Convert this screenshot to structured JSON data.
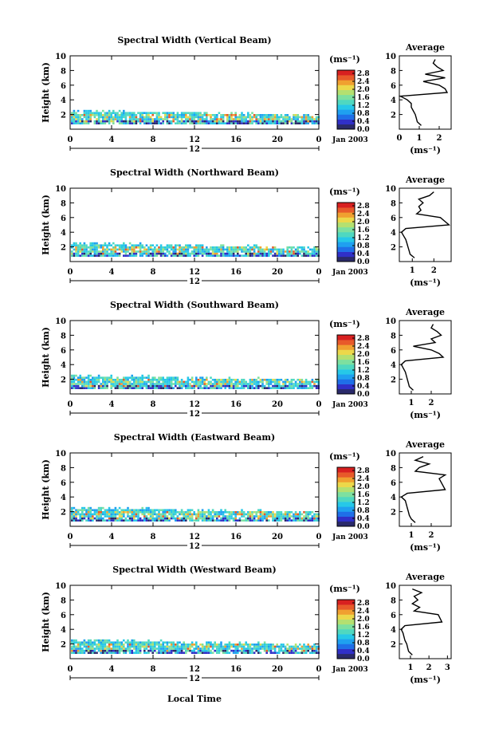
{
  "colorbar": {
    "unit": "(ms⁻¹)",
    "ticks": [
      "2.8",
      "2.4",
      "2.0",
      "1.6",
      "1.2",
      "0.8",
      "0.4",
      "0.0"
    ],
    "colors": [
      "#2a2a6a",
      "#3030c8",
      "#1f6fe8",
      "#1fa0f0",
      "#26c8e8",
      "#4fd8c0",
      "#7de0a0",
      "#b4e070",
      "#ecd84a",
      "#f0a030",
      "#e85a2a",
      "#d82020"
    ]
  },
  "xaxis": {
    "ticks": [
      "0",
      "4",
      "8",
      "12",
      "16",
      "20",
      "0"
    ],
    "day_label": "12",
    "month_label": "Jan 2003",
    "local_time_label": "Local Time"
  },
  "yaxis_label": "Height (km)",
  "average_label": "Average",
  "panels": [
    {
      "title": "Spectral Width (Vertical Beam)",
      "y_ticks": [
        "10",
        "8",
        "6",
        "4",
        "2"
      ],
      "avg_x_ticks": [
        "0",
        "1",
        "2"
      ],
      "avg_xlabel": "(ms⁻¹)"
    },
    {
      "title": "Spectral Width (Northward Beam)",
      "y_ticks": [
        "10",
        "8",
        "6",
        "4",
        "2"
      ],
      "avg_x_ticks": [
        "1",
        "2"
      ],
      "avg_xlabel": "(ms⁻¹)"
    },
    {
      "title": "Spectral Width (Southward Beam)",
      "y_ticks": [
        "10",
        "8",
        "6",
        "4",
        "2"
      ],
      "avg_x_ticks": [
        "1",
        "2"
      ],
      "avg_xlabel": "(ms⁻¹)"
    },
    {
      "title": "Spectral Width (Eastward Beam)",
      "y_ticks": [
        "10",
        "8",
        "6",
        "4",
        "2"
      ],
      "avg_x_ticks": [
        "1",
        "2"
      ],
      "avg_xlabel": "(ms⁻¹)"
    },
    {
      "title": "Spectral Width (Westward Beam)",
      "y_ticks": [
        "10",
        "8",
        "6",
        "4",
        "2"
      ],
      "avg_x_ticks": [
        "1",
        "2",
        "3"
      ],
      "avg_xlabel": "(ms⁻¹)"
    }
  ],
  "chart_data": [
    {
      "type": "heatmap",
      "title": "Spectral Width (Vertical Beam)",
      "xlabel": "",
      "ylabel": "Height (km)",
      "xlim": [
        0,
        24
      ],
      "ylim": [
        0,
        10
      ],
      "zlim": [
        0.0,
        2.8
      ],
      "avg_profile": {
        "xlim": [
          0,
          2.6
        ],
        "height": [
          0.5,
          1.0,
          1.5,
          2.0,
          2.5,
          3.0,
          3.5,
          4.0,
          4.5,
          5.0,
          5.5,
          6.0,
          6.5,
          7.0,
          7.5,
          8.0,
          8.5,
          9.0,
          9.5
        ],
        "width": [
          1.1,
          0.9,
          0.85,
          0.8,
          0.7,
          0.6,
          0.6,
          0.4,
          0.05,
          2.4,
          2.3,
          2.0,
          1.2,
          2.3,
          1.3,
          2.2,
          1.9,
          1.7,
          1.8
        ]
      }
    },
    {
      "type": "heatmap",
      "title": "Spectral Width (Northward Beam)",
      "xlabel": "",
      "ylabel": "Height (km)",
      "xlim": [
        0,
        24
      ],
      "ylim": [
        0,
        10
      ],
      "zlim": [
        0.0,
        2.8
      ],
      "avg_profile": {
        "xlim": [
          0.4,
          2.8
        ],
        "height": [
          0.5,
          1.0,
          1.5,
          2.0,
          2.5,
          3.0,
          3.5,
          4.0,
          4.5,
          5.0,
          5.5,
          6.0,
          6.5,
          7.0,
          7.5,
          8.0,
          8.5,
          9.0,
          9.5
        ],
        "width": [
          1.1,
          0.9,
          0.85,
          0.8,
          0.75,
          0.7,
          0.6,
          0.5,
          0.7,
          2.7,
          2.5,
          2.3,
          1.2,
          1.4,
          1.3,
          1.5,
          1.3,
          1.8,
          2.0
        ]
      }
    },
    {
      "type": "heatmap",
      "title": "Spectral Width (Southward Beam)",
      "xlabel": "",
      "ylabel": "Height (km)",
      "xlim": [
        0,
        24
      ],
      "ylim": [
        0,
        10
      ],
      "zlim": [
        0.0,
        2.8
      ],
      "avg_profile": {
        "xlim": [
          0.4,
          3.0
        ],
        "height": [
          0.5,
          1.0,
          1.5,
          2.0,
          2.5,
          3.0,
          3.5,
          4.0,
          4.5,
          5.0,
          5.5,
          6.0,
          6.5,
          7.0,
          7.5,
          8.0,
          8.5,
          9.0,
          9.5
        ],
        "width": [
          1.1,
          0.9,
          0.85,
          0.8,
          0.75,
          0.7,
          0.6,
          0.5,
          0.7,
          2.6,
          2.4,
          2.0,
          1.1,
          2.2,
          2.0,
          2.5,
          2.3,
          2.0,
          2.1
        ]
      }
    },
    {
      "type": "heatmap",
      "title": "Spectral Width (Eastward Beam)",
      "xlabel": "",
      "ylabel": "Height (km)",
      "xlim": [
        0,
        24
      ],
      "ylim": [
        0,
        10
      ],
      "zlim": [
        0.0,
        2.8
      ],
      "avg_profile": {
        "xlim": [
          0.4,
          3.0
        ],
        "height": [
          0.5,
          1.0,
          1.5,
          2.0,
          2.5,
          3.0,
          3.5,
          4.0,
          4.5,
          5.0,
          5.5,
          6.0,
          6.5,
          7.0,
          7.5,
          8.0,
          8.5,
          9.0,
          9.5
        ],
        "width": [
          1.2,
          1.0,
          0.9,
          0.85,
          0.8,
          0.75,
          0.7,
          0.5,
          0.8,
          2.7,
          2.6,
          2.5,
          2.4,
          2.7,
          1.2,
          1.4,
          1.9,
          1.2,
          1.6
        ]
      }
    },
    {
      "type": "heatmap",
      "title": "Spectral Width (Westward Beam)",
      "xlabel": "Local Time",
      "ylabel": "Height (km)",
      "xlim": [
        0,
        24
      ],
      "ylim": [
        0,
        10
      ],
      "zlim": [
        0.0,
        2.8
      ],
      "avg_profile": {
        "xlim": [
          0.4,
          3.2
        ],
        "height": [
          0.5,
          1.0,
          1.5,
          2.0,
          2.5,
          3.0,
          3.5,
          4.0,
          4.5,
          5.0,
          5.5,
          6.0,
          6.5,
          7.0,
          7.5,
          8.0,
          8.5,
          9.0,
          9.5
        ],
        "width": [
          1.1,
          0.9,
          0.85,
          0.8,
          0.7,
          0.65,
          0.6,
          0.5,
          0.7,
          2.7,
          2.6,
          2.5,
          1.2,
          1.5,
          1.1,
          1.4,
          1.2,
          1.6,
          1.1
        ]
      }
    }
  ]
}
